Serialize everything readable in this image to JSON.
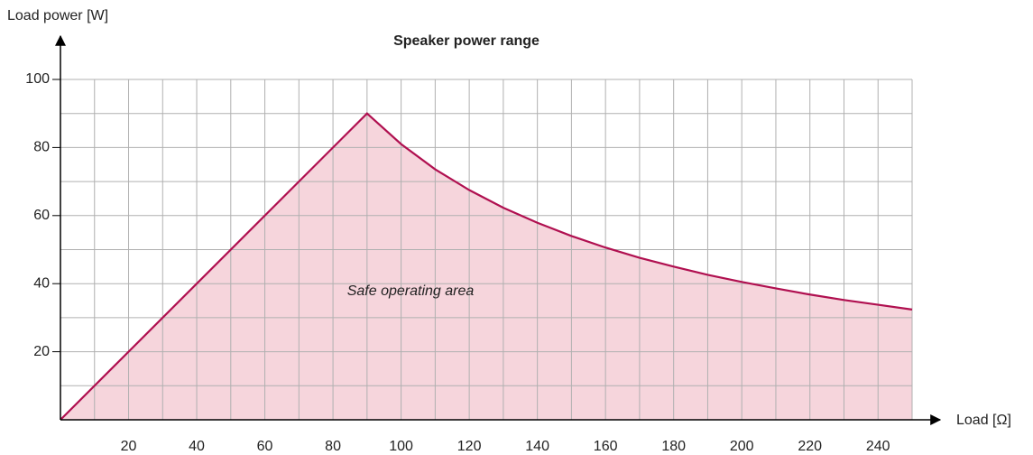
{
  "chart_data": {
    "type": "line",
    "title": "Speaker power range",
    "x_label": "Load [Ω]",
    "y_label": "Load power [W]",
    "annotation": "Safe operating area",
    "x": [
      0,
      90,
      100,
      110,
      120,
      130,
      140,
      150,
      160,
      170,
      180,
      190,
      200,
      210,
      220,
      230,
      240,
      250
    ],
    "series": [
      {
        "name": "Load power",
        "color": "#b01050",
        "fill": "#f6d5dc",
        "values": [
          0,
          90,
          81,
          73.6,
          67.5,
          62.3,
          57.9,
          54,
          50.6,
          47.6,
          45,
          42.6,
          40.5,
          38.6,
          36.8,
          35.2,
          33.8,
          32.4
        ]
      }
    ],
    "xlim": [
      0,
      250
    ],
    "ylim": [
      0,
      100
    ],
    "xticks": [
      20,
      40,
      60,
      80,
      100,
      120,
      140,
      160,
      180,
      200,
      220,
      240
    ],
    "yticks": [
      20,
      40,
      60,
      80,
      100
    ],
    "x_minor_ticks": [
      10,
      30,
      50,
      70,
      90,
      110,
      130,
      150,
      170,
      190,
      210,
      230,
      250
    ],
    "y_minor_ticks": [
      10,
      30,
      50,
      70,
      90
    ],
    "grid": true
  }
}
